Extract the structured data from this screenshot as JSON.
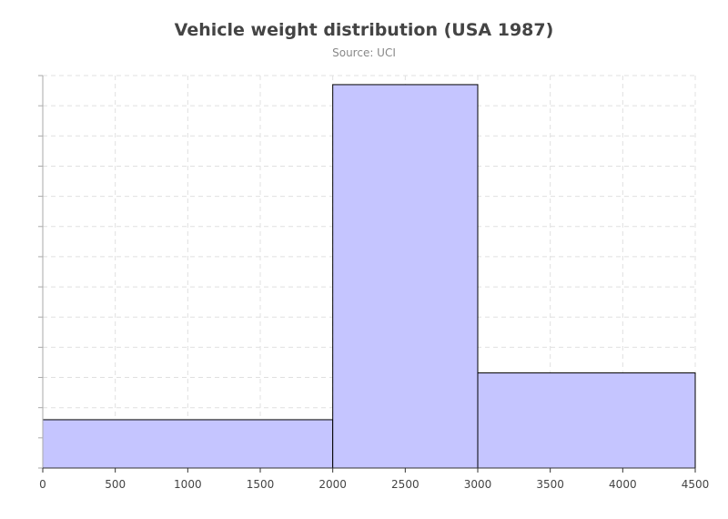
{
  "chart_data": {
    "type": "bar",
    "subtype": "histogram",
    "title": "Vehicle weight distribution (USA 1987)",
    "subtitle": "Source: UCI",
    "xlabel": "",
    "ylabel": "",
    "xlim": [
      0,
      4500
    ],
    "ylim": [
      0,
      130
    ],
    "x_ticks": [
      0,
      500,
      1000,
      1500,
      2000,
      2500,
      3000,
      3500,
      4000,
      4500
    ],
    "y_tick_count": 13,
    "y_tick_labels_shown": false,
    "grid": true,
    "legend": "none",
    "bins": [
      {
        "x0": 0,
        "x1": 2000,
        "count": 16
      },
      {
        "x0": 2000,
        "x1": 3000,
        "count": 127
      },
      {
        "x0": 3000,
        "x1": 4500,
        "count": 31.5
      }
    ],
    "colors": {
      "bar_fill": "#c5c5ff",
      "bar_stroke": "#000000",
      "grid": "#e0e0e0",
      "axis": "#aaaaaa"
    }
  }
}
